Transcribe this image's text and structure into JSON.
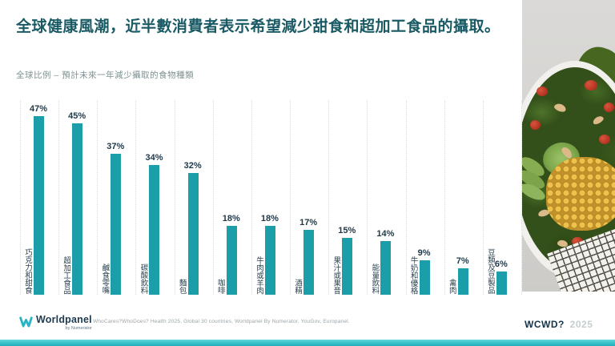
{
  "slide": {
    "title": "全球健康風潮，近半數消費者表示希望減少甜食和超加工食品的攝取。",
    "subtitle": "全球比例 – 預計未來一年減少攝取的食物種類"
  },
  "chart_data": {
    "type": "bar",
    "orientation": "vertical",
    "title": "全球比例 – 預計未來一年減少攝取的食物種類",
    "categories": [
      "巧克力和甜食",
      "超加工食品",
      "鹹食零嘴",
      "碳酸飲料",
      "麵包",
      "咖啡",
      "牛肉或羊肉",
      "酒精",
      "果汁或果昔",
      "能量飲料",
      "牛奶和優格",
      "禽肉",
      "豆類及豆製品"
    ],
    "values": [
      47,
      45,
      37,
      34,
      32,
      18,
      18,
      17,
      15,
      14,
      9,
      7,
      6
    ],
    "value_labels": [
      "47%",
      "45%",
      "37%",
      "34%",
      "32%",
      "18%",
      "18%",
      "17%",
      "15%",
      "14%",
      "9%",
      "7%",
      "6%"
    ],
    "ylim": [
      0,
      50
    ],
    "grid": "vertical-dotted-between-categories",
    "legend": "none",
    "bar_color": "#1B9DAA"
  },
  "footer": {
    "logo": {
      "brand": "Worldpanel",
      "sub_brand": "by Numerator",
      "icon": "worldpanel-w-icon"
    },
    "source": "WhoCares?WhoDoes? Health 2025, Global 30 countries, Worldpanel By Numerator, YouGov, Europanel.",
    "event_tag": {
      "bold": "WCWD?",
      "year": "2025"
    }
  },
  "colors": {
    "bar": "#1B9DAA",
    "title": "#1A5A64",
    "subtitle": "#7E9193",
    "value_label": "#1F3847",
    "category_label": "#2C434F",
    "gridline": "#D5DADC",
    "bottom_strip": "#2FBCC6",
    "logo_navy": "#1E3A4F",
    "wcwd_navy": "#14344A",
    "wcwd_year": "#C7CED2"
  },
  "photo": {
    "content": "salad-bowl-photo"
  }
}
